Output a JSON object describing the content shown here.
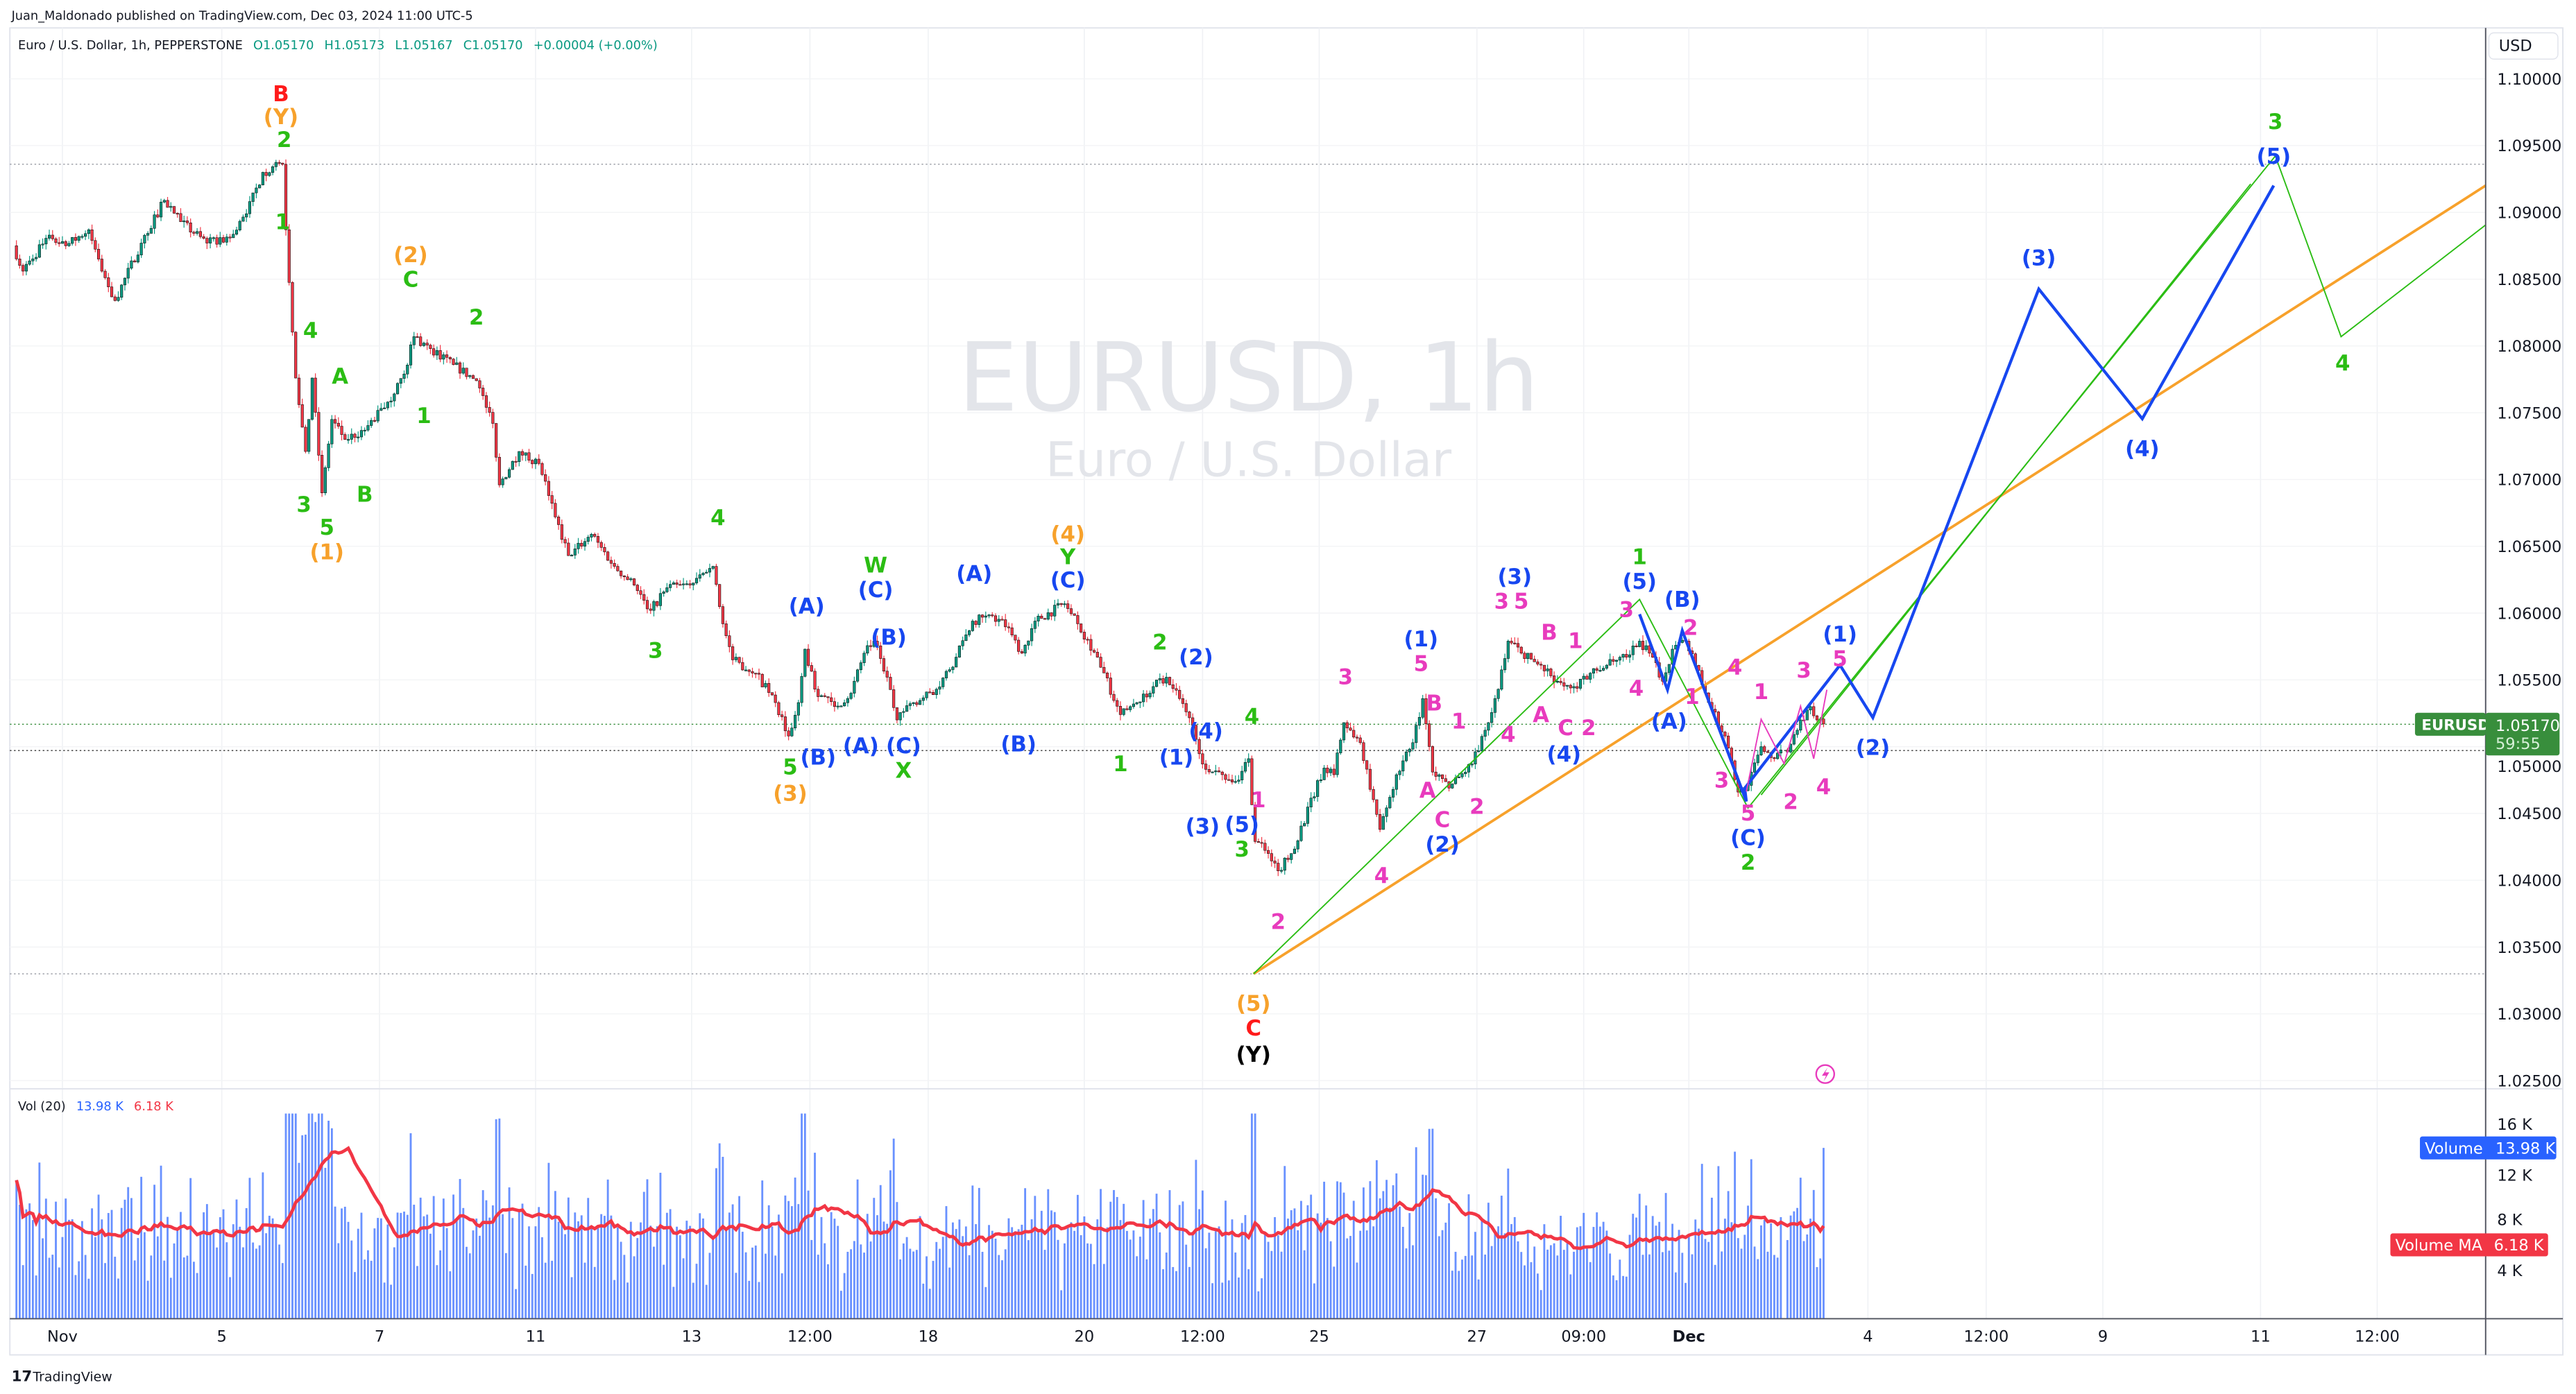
{
  "header": {
    "published": "Juan_Maldonado published on TradingView.com, Dec 03, 2024 11:00 UTC-5",
    "symbol_desc": "Euro / U.S. Dollar, 1h, PEPPERSTONE",
    "open": "O1.05170",
    "high": "H1.05173",
    "low": "L1.05167",
    "close": "C1.05170",
    "change": "+0.00004 (+0.00%)"
  },
  "watermark": {
    "title": "EURUSD, 1h",
    "subtitle": "Euro / U.S. Dollar"
  },
  "price_axis": {
    "currency": "USD",
    "ticks": [
      "1.10000",
      "1.09500",
      "1.09000",
      "1.08500",
      "1.08000",
      "1.07500",
      "1.07000",
      "1.06500",
      "1.06000",
      "1.05500",
      "1.05000",
      "1.04500",
      "1.04000",
      "1.03500",
      "1.03000",
      "1.02500"
    ],
    "symbol_tag": "EURUSD",
    "last_price": "1.05170",
    "countdown": "59:55"
  },
  "volume_pane": {
    "legend_name": "Vol (20)",
    "legend_volume": "13.98 K",
    "legend_ma": "6.18 K",
    "ticks": [
      "16 K",
      "12 K",
      "8 K",
      "4 K"
    ],
    "volume_tag": "Volume",
    "volume_value": "13.98 K",
    "ma_tag": "Volume MA",
    "ma_value": "6.18 K"
  },
  "time_axis": {
    "ticks": [
      "Nov",
      "5",
      "7",
      "11",
      "13",
      "12:00",
      "18",
      "20",
      "12:00",
      "25",
      "27",
      "09:00",
      "Dec",
      "4",
      "12:00",
      "9",
      "11",
      "12:00"
    ]
  },
  "footer": {
    "brand": "TradingView"
  },
  "colors": {
    "up": "#089981",
    "down": "#f23645",
    "volume": "#2962ff",
    "volume_ma": "#f23645",
    "last_price": "#388e3c",
    "r": "#ff1a1a",
    "o": "#f7a12b",
    "g": "#2bbd14",
    "b": "#1747f0",
    "p": "#e83bbd",
    "k": "#000000"
  },
  "chart_data": {
    "type": "candlestick",
    "symbol": "EURUSD",
    "interval": "1h",
    "ylim": [
      1.022,
      1.103
    ],
    "last_close": 1.0517,
    "last_volume_k": 13.98,
    "price_path": [
      [
        "10-31 09:00",
        1.0875
      ],
      [
        "10-31 12:00",
        1.0856
      ],
      [
        "10-31 20:00",
        1.0883
      ],
      [
        "11-01 01:00",
        1.0875
      ],
      [
        "11-01 08:00",
        1.0887
      ],
      [
        "11-01 12:00",
        1.0856
      ],
      [
        "11-01 16:00",
        1.0834
      ],
      [
        "11-04 00:00",
        1.0877
      ],
      [
        "11-04 07:00",
        1.0909
      ],
      [
        "11-04 12:00",
        1.0893
      ],
      [
        "11-04 20:00",
        1.0877
      ],
      [
        "11-05 03:00",
        1.0881
      ],
      [
        "11-05 08:00",
        1.0899
      ],
      [
        "11-05 13:00",
        1.093
      ],
      [
        "11-05 19:00",
        1.0936
      ],
      [
        "11-05 20:00",
        1.0887
      ],
      [
        "11-05 23:00",
        1.0776
      ],
      [
        "11-06 02:00",
        1.0721
      ],
      [
        "11-06 04:00",
        1.0776
      ],
      [
        "11-06 07:00",
        1.069
      ],
      [
        "11-06 10:00",
        1.0745
      ],
      [
        "11-06 14:00",
        1.073
      ],
      [
        "11-06 20:00",
        1.0737
      ],
      [
        "11-07 03:00",
        1.0758
      ],
      [
        "11-07 08:00",
        1.0779
      ],
      [
        "11-07 11:00",
        1.0807
      ],
      [
        "11-07 16:00",
        1.0798
      ],
      [
        "11-07 23:00",
        1.0786
      ],
      [
        "11-08 06:00",
        1.0774
      ],
      [
        "11-08 11:00",
        1.0742
      ],
      [
        "11-08 13:00",
        1.0696
      ],
      [
        "11-08 19:00",
        1.0721
      ],
      [
        "11-11 01:00",
        1.0712
      ],
      [
        "11-11 06:00",
        1.0672
      ],
      [
        "11-11 10:00",
        1.0643
      ],
      [
        "11-11 17:00",
        1.0659
      ],
      [
        "11-12 00:00",
        1.0635
      ],
      [
        "11-12 06:00",
        1.0621
      ],
      [
        "11-12 11:00",
        1.0602
      ],
      [
        "11-12 16:00",
        1.0619
      ],
      [
        "11-12 23:00",
        1.0621
      ],
      [
        "11-13 06:00",
        1.0635
      ],
      [
        "11-13 09:00",
        1.0592
      ],
      [
        "11-13 12:00",
        1.0565
      ],
      [
        "11-13 19:00",
        1.0555
      ],
      [
        "11-14 01:00",
        1.0533
      ],
      [
        "11-14 05:00",
        1.0508
      ],
      [
        "11-14 08:00",
        1.0533
      ],
      [
        "11-14 10:00",
        1.0573
      ],
      [
        "11-14 13:00",
        1.0543
      ],
      [
        "11-14 19:00",
        1.053
      ],
      [
        "11-15 00:00",
        1.054
      ],
      [
        "11-15 04:00",
        1.057
      ],
      [
        "11-15 07:00",
        1.0579
      ],
      [
        "11-15 11:00",
        1.0552
      ],
      [
        "11-15 14:00",
        1.052
      ],
      [
        "11-15 19:00",
        1.0533
      ],
      [
        "11-18 02:00",
        1.0543
      ],
      [
        "11-18 08:00",
        1.0567
      ],
      [
        "11-18 13:00",
        1.0594
      ],
      [
        "11-18 19:00",
        1.0598
      ],
      [
        "11-19 00:00",
        1.0589
      ],
      [
        "11-19 04:00",
        1.057
      ],
      [
        "11-19 08:00",
        1.0594
      ],
      [
        "11-19 17:00",
        1.0607
      ],
      [
        "11-19 21:00",
        1.0592
      ],
      [
        "11-20 03:00",
        1.0567
      ],
      [
        "11-20 10:00",
        1.0524
      ],
      [
        "11-20 15:00",
        1.0533
      ],
      [
        "11-20 20:00",
        1.0545
      ],
      [
        "11-21 00:00",
        1.0552
      ],
      [
        "11-21 04:00",
        1.0536
      ],
      [
        "11-21 08:00",
        1.0516
      ],
      [
        "11-21 11:00",
        1.0487
      ],
      [
        "11-21 16:00",
        1.0481
      ],
      [
        "11-21 21:00",
        1.0474
      ],
      [
        "11-22 01:00",
        1.0491
      ],
      [
        "11-22 03:00",
        1.0429
      ],
      [
        "11-22 07:00",
        1.042
      ],
      [
        "11-22 10:00",
        1.0407
      ],
      [
        "11-22 14:00",
        1.042
      ],
      [
        "11-25 00:00",
        1.0484
      ],
      [
        "11-25 03:00",
        1.0479
      ],
      [
        "11-25 06:00",
        1.0518
      ],
      [
        "11-25 11:00",
        1.0503
      ],
      [
        "11-25 17:00",
        1.0438
      ],
      [
        "11-25 22:00",
        1.0479
      ],
      [
        "11-26 03:00",
        1.0503
      ],
      [
        "11-26 06:00",
        1.0536
      ],
      [
        "11-26 09:00",
        1.0481
      ],
      [
        "11-26 14:00",
        1.0469
      ],
      [
        "11-26 21:00",
        1.0487
      ],
      [
        "11-27 02:00",
        1.0518
      ],
      [
        "11-27 05:00",
        1.0543
      ],
      [
        "11-27 08:00",
        1.0579
      ],
      [
        "11-27 12:00",
        1.057
      ],
      [
        "11-27 18:00",
        1.0561
      ],
      [
        "11-27 23:00",
        1.0549
      ],
      [
        "11-28 04:00",
        1.0545
      ],
      [
        "11-28 09:00",
        1.0555
      ],
      [
        "11-28 14:00",
        1.0561
      ],
      [
        "11-28 20:00",
        1.0567
      ],
      [
        "11-29 00:00",
        1.0579
      ],
      [
        "11-29 03:00",
        1.057
      ],
      [
        "11-29 07:00",
        1.0549
      ],
      [
        "11-29 10:00",
        1.0573
      ],
      [
        "11-29 14:00",
        1.0579
      ],
      [
        "11-29 18:00",
        1.0557
      ],
      [
        "12-02 02:00",
        1.0528
      ],
      [
        "12-02 06:00",
        1.0508
      ],
      [
        "12-02 10:00",
        1.0466
      ],
      [
        "12-02 13:00",
        1.0471
      ],
      [
        "12-02 17:00",
        1.05
      ],
      [
        "12-02 21:00",
        1.0491
      ],
      [
        "12-03 00:00",
        1.0496
      ],
      [
        "12-03 04:00",
        1.052
      ],
      [
        "12-03 07:00",
        1.053
      ],
      [
        "12-03 09:00",
        1.052
      ],
      [
        "12-03 11:00",
        1.0517
      ]
    ],
    "wave_labels": [
      {
        "text": "B",
        "color": "r"
      },
      {
        "text": "(Y)",
        "color": "o"
      },
      {
        "text": "2",
        "color": "g"
      },
      {
        "text": "1",
        "color": "g"
      },
      {
        "text": "4",
        "color": "g"
      },
      {
        "text": "A",
        "color": "g"
      },
      {
        "text": "3",
        "color": "g"
      },
      {
        "text": "B",
        "color": "g"
      },
      {
        "text": "5",
        "color": "g"
      },
      {
        "text": "(1)",
        "color": "o"
      },
      {
        "text": "(2)",
        "color": "o"
      },
      {
        "text": "C",
        "color": "g"
      },
      {
        "text": "1",
        "color": "g"
      },
      {
        "text": "2",
        "color": "g"
      },
      {
        "text": "4",
        "color": "g"
      },
      {
        "text": "3",
        "color": "g"
      },
      {
        "text": "(A)",
        "color": "b"
      },
      {
        "text": "5",
        "color": "g"
      },
      {
        "text": "(3)",
        "color": "o"
      },
      {
        "text": "(B)",
        "color": "b"
      },
      {
        "text": "W",
        "color": "g"
      },
      {
        "text": "(C)",
        "color": "b"
      },
      {
        "text": "(B)",
        "color": "b"
      },
      {
        "text": "(A)",
        "color": "b"
      },
      {
        "text": "(C)",
        "color": "b"
      },
      {
        "text": "X",
        "color": "g"
      },
      {
        "text": "(A)",
        "color": "b"
      },
      {
        "text": "(B)",
        "color": "b"
      },
      {
        "text": "(4)",
        "color": "o"
      },
      {
        "text": "Y",
        "color": "g"
      },
      {
        "text": "(C)",
        "color": "b"
      },
      {
        "text": "2",
        "color": "g"
      },
      {
        "text": "(2)",
        "color": "b"
      },
      {
        "text": "1",
        "color": "g"
      },
      {
        "text": "(1)",
        "color": "b"
      },
      {
        "text": "(4)",
        "color": "b"
      },
      {
        "text": "4",
        "color": "g"
      },
      {
        "text": "1",
        "color": "p"
      },
      {
        "text": "(3)",
        "color": "b"
      },
      {
        "text": "(5)",
        "color": "b"
      },
      {
        "text": "3",
        "color": "g"
      },
      {
        "text": "2",
        "color": "p"
      },
      {
        "text": "(5)",
        "color": "o"
      },
      {
        "text": "C",
        "color": "r"
      },
      {
        "text": "(Y)",
        "color": "k"
      },
      {
        "text": "3",
        "color": "p"
      },
      {
        "text": "(1)",
        "color": "b"
      },
      {
        "text": "5",
        "color": "p"
      },
      {
        "text": "B",
        "color": "p"
      },
      {
        "text": "1",
        "color": "p"
      },
      {
        "text": "A",
        "color": "p"
      },
      {
        "text": "4",
        "color": "p"
      },
      {
        "text": "C",
        "color": "p"
      },
      {
        "text": "(2)",
        "color": "b"
      },
      {
        "text": "2",
        "color": "p"
      },
      {
        "text": "4",
        "color": "p"
      },
      {
        "text": "(3)",
        "color": "b"
      },
      {
        "text": "3",
        "color": "p"
      },
      {
        "text": "5",
        "color": "p"
      },
      {
        "text": "B",
        "color": "p"
      },
      {
        "text": "1",
        "color": "p"
      },
      {
        "text": "A",
        "color": "p"
      },
      {
        "text": "C",
        "color": "p"
      },
      {
        "text": "2",
        "color": "p"
      },
      {
        "text": "(4)",
        "color": "b"
      },
      {
        "text": "3",
        "color": "p"
      },
      {
        "text": "1",
        "color": "g"
      },
      {
        "text": "(5)",
        "color": "b"
      },
      {
        "text": "4",
        "color": "p"
      },
      {
        "text": "(B)",
        "color": "b"
      },
      {
        "text": "2",
        "color": "p"
      },
      {
        "text": "1",
        "color": "p"
      },
      {
        "text": "(A)",
        "color": "b"
      },
      {
        "text": "4",
        "color": "p"
      },
      {
        "text": "3",
        "color": "p"
      },
      {
        "text": "1",
        "color": "p"
      },
      {
        "text": "5",
        "color": "p"
      },
      {
        "text": "(C)",
        "color": "b"
      },
      {
        "text": "2",
        "color": "g"
      },
      {
        "text": "2",
        "color": "p"
      },
      {
        "text": "3",
        "color": "p"
      },
      {
        "text": "(1)",
        "color": "b"
      },
      {
        "text": "5",
        "color": "p"
      },
      {
        "text": "4",
        "color": "p"
      },
      {
        "text": "(2)",
        "color": "b"
      },
      {
        "text": "(3)",
        "color": "b"
      },
      {
        "text": "(4)",
        "color": "b"
      },
      {
        "text": "3",
        "color": "g"
      },
      {
        "text": "(5)",
        "color": "b"
      },
      {
        "text": "4",
        "color": "g"
      }
    ]
  }
}
